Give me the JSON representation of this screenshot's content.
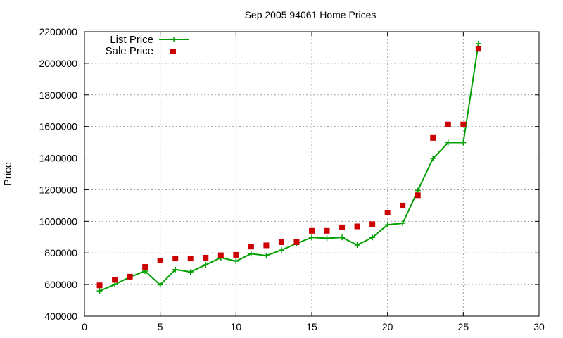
{
  "chart_data": {
    "type": "line",
    "title": "Sep 2005 94061 Home Prices",
    "xlabel": "",
    "ylabel": "Price",
    "xlim": [
      0,
      30
    ],
    "ylim": [
      400000,
      2200000
    ],
    "x_ticks": [
      "0",
      "5",
      "10",
      "15",
      "20",
      "25",
      "30"
    ],
    "y_ticks": [
      "400000",
      "600000",
      "800000",
      "1000000",
      "1200000",
      "1400000",
      "1600000",
      "1800000",
      "2000000",
      "2200000"
    ],
    "grid": true,
    "legend_position": "top-left",
    "series": [
      {
        "name": "List Price",
        "style": "lines+points",
        "marker": "plus",
        "color": "#00a000",
        "x": [
          1,
          2,
          3,
          4,
          5,
          6,
          7,
          8,
          9,
          10,
          11,
          12,
          13,
          14,
          15,
          16,
          17,
          18,
          19,
          20,
          21,
          22,
          23,
          24,
          25,
          26
        ],
        "values": [
          560000,
          600000,
          648000,
          685000,
          598000,
          695000,
          680000,
          725000,
          770000,
          748000,
          795000,
          783000,
          818000,
          860000,
          898000,
          893000,
          898000,
          850000,
          898000,
          978000,
          988000,
          1195000,
          1398000,
          1498000,
          1498000,
          2125000
        ]
      },
      {
        "name": "Sale Price",
        "style": "points",
        "marker": "square",
        "color": "#cc0000",
        "x": [
          1,
          2,
          3,
          4,
          5,
          6,
          7,
          8,
          9,
          10,
          11,
          12,
          13,
          14,
          15,
          16,
          17,
          18,
          19,
          20,
          21,
          22,
          23,
          24,
          25,
          26
        ],
        "values": [
          595000,
          630000,
          650000,
          712000,
          752000,
          765000,
          765000,
          770000,
          785000,
          788000,
          840000,
          848000,
          868000,
          868000,
          940000,
          940000,
          962000,
          968000,
          982000,
          1055000,
          1100000,
          1165000,
          1528000,
          1613000,
          1613000,
          2092000
        ]
      }
    ]
  }
}
